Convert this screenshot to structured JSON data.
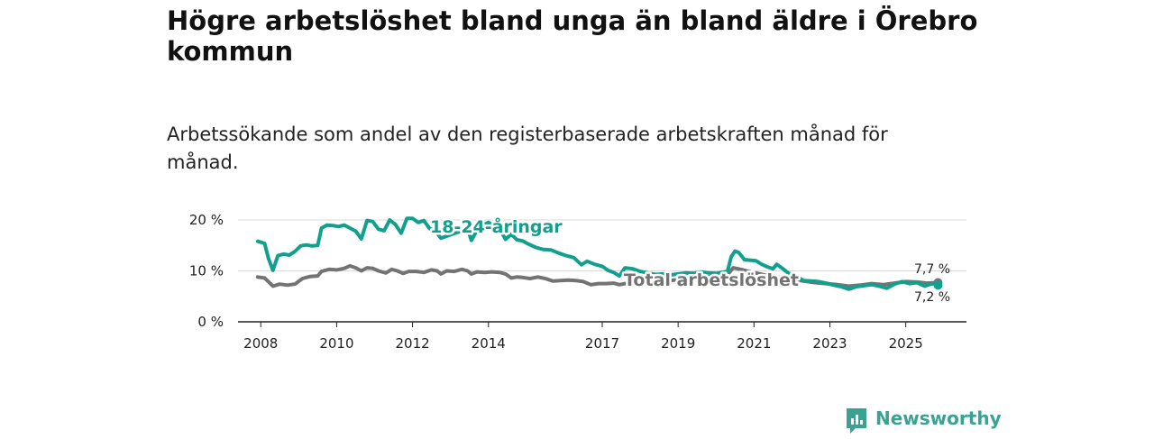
{
  "colors": {
    "youth": "#12a08e",
    "total": "#737373",
    "grid": "#d9d9d9",
    "axis": "#222222",
    "brand": "#3aa293"
  },
  "brand": {
    "name": "Newsworthy",
    "icon": "newsworthy-logo-icon"
  },
  "chart_data": {
    "type": "line",
    "title": "Högre arbetslöshet bland unga än bland äldre i Örebro kommun",
    "subtitle": "Arbetssökande som andel av den registerbaserade arbetskraften månad för månad.",
    "xlabel": "",
    "ylabel": "",
    "x_ticks": [
      2008,
      2010,
      2012,
      2014,
      2017,
      2019,
      2021,
      2023,
      2025
    ],
    "x_tick_labels": [
      "2008",
      "2010",
      "2012",
      "2014",
      "2017",
      "2019",
      "2021",
      "2023",
      "2025"
    ],
    "xlim": [
      2007.4,
      2026.6
    ],
    "ylim": [
      0,
      20
    ],
    "y_ticks": [
      0,
      10,
      20
    ],
    "y_tick_labels": [
      "0 %",
      "10 %",
      "20 %"
    ],
    "grid": true,
    "series": [
      {
        "name": "18-24-åringar",
        "label": "18-24-åringar",
        "color_key": "youth",
        "end_label": "7,2 %",
        "points": [
          [
            2007.92,
            15.8
          ],
          [
            2008.1,
            15.4
          ],
          [
            2008.2,
            12.5
          ],
          [
            2008.32,
            10.1
          ],
          [
            2008.45,
            13.0
          ],
          [
            2008.6,
            13.3
          ],
          [
            2008.75,
            13.1
          ],
          [
            2008.9,
            13.8
          ],
          [
            2009.05,
            14.9
          ],
          [
            2009.2,
            15.1
          ],
          [
            2009.35,
            14.9
          ],
          [
            2009.5,
            15.0
          ],
          [
            2009.6,
            18.4
          ],
          [
            2009.75,
            19.0
          ],
          [
            2009.9,
            18.9
          ],
          [
            2010.05,
            18.7
          ],
          [
            2010.2,
            19.0
          ],
          [
            2010.35,
            18.4
          ],
          [
            2010.5,
            17.8
          ],
          [
            2010.65,
            16.3
          ],
          [
            2010.8,
            19.9
          ],
          [
            2010.95,
            19.7
          ],
          [
            2011.1,
            18.2
          ],
          [
            2011.25,
            17.9
          ],
          [
            2011.4,
            20.0
          ],
          [
            2011.55,
            19.1
          ],
          [
            2011.7,
            17.4
          ],
          [
            2011.85,
            20.3
          ],
          [
            2012.0,
            20.3
          ],
          [
            2012.15,
            19.5
          ],
          [
            2012.3,
            19.9
          ],
          [
            2012.45,
            18.3
          ],
          [
            2012.6,
            17.9
          ],
          [
            2012.75,
            16.4
          ],
          [
            2013.45,
            18.3
          ],
          [
            2013.55,
            16.0
          ],
          [
            2013.7,
            18.0
          ],
          [
            2013.85,
            18.9
          ],
          [
            2014.0,
            19.5
          ],
          [
            2014.15,
            18.9
          ],
          [
            2014.3,
            18.2
          ],
          [
            2014.45,
            16.2
          ],
          [
            2014.6,
            17.2
          ],
          [
            2014.75,
            16.1
          ],
          [
            2014.9,
            15.9
          ],
          [
            2015.05,
            15.3
          ],
          [
            2015.25,
            14.6
          ],
          [
            2015.45,
            14.2
          ],
          [
            2015.65,
            14.1
          ],
          [
            2015.85,
            13.5
          ],
          [
            2016.05,
            13.0
          ],
          [
            2016.25,
            12.6
          ],
          [
            2016.45,
            11.2
          ],
          [
            2016.6,
            11.9
          ],
          [
            2016.8,
            11.3
          ],
          [
            2017.0,
            10.9
          ],
          [
            2017.15,
            10.1
          ],
          [
            2017.3,
            9.7
          ],
          [
            2017.45,
            9.0
          ],
          [
            2017.6,
            10.6
          ],
          [
            2017.8,
            10.4
          ],
          [
            2018.0,
            9.9
          ],
          [
            2018.2,
            9.6
          ],
          [
            2018.4,
            9.3
          ],
          [
            2018.6,
            9.4
          ],
          [
            2018.8,
            9.2
          ],
          [
            2019.0,
            9.4
          ],
          [
            2019.2,
            9.6
          ],
          [
            2019.4,
            9.5
          ],
          [
            2019.6,
            9.8
          ],
          [
            2019.8,
            9.6
          ],
          [
            2020.0,
            9.5
          ],
          [
            2020.15,
            9.7
          ],
          [
            2020.3,
            9.9
          ],
          [
            2020.4,
            12.8
          ],
          [
            2020.5,
            13.9
          ],
          [
            2020.6,
            13.6
          ],
          [
            2020.75,
            12.2
          ],
          [
            2020.9,
            12.1
          ],
          [
            2021.05,
            12.0
          ],
          [
            2021.2,
            11.3
          ],
          [
            2021.35,
            10.8
          ],
          [
            2021.5,
            10.4
          ],
          [
            2021.6,
            11.3
          ],
          [
            2021.75,
            10.5
          ],
          [
            2021.9,
            9.6
          ],
          [
            2022.1,
            9.0
          ],
          [
            2022.3,
            8.1
          ],
          [
            2022.5,
            8.0
          ],
          [
            2022.7,
            7.9
          ],
          [
            2022.9,
            7.6
          ],
          [
            2023.1,
            7.2
          ],
          [
            2023.3,
            6.9
          ],
          [
            2023.5,
            6.4
          ],
          [
            2023.7,
            6.9
          ],
          [
            2023.9,
            7.1
          ],
          [
            2024.1,
            7.3
          ],
          [
            2024.3,
            7.0
          ],
          [
            2024.5,
            6.6
          ],
          [
            2024.7,
            7.4
          ],
          [
            2024.9,
            7.9
          ],
          [
            2025.1,
            7.5
          ],
          [
            2025.3,
            7.7
          ],
          [
            2025.5,
            7.0
          ],
          [
            2025.7,
            7.5
          ],
          [
            2025.85,
            7.2
          ]
        ]
      },
      {
        "name": "Total arbetslöshet",
        "label": "Total arbetslöshet",
        "color_key": "total",
        "end_label": "7,7 %",
        "points": [
          [
            2007.92,
            8.8
          ],
          [
            2008.1,
            8.6
          ],
          [
            2008.2,
            7.9
          ],
          [
            2008.32,
            7.0
          ],
          [
            2008.5,
            7.4
          ],
          [
            2008.7,
            7.2
          ],
          [
            2008.9,
            7.4
          ],
          [
            2009.1,
            8.5
          ],
          [
            2009.3,
            8.9
          ],
          [
            2009.5,
            9.0
          ],
          [
            2009.6,
            9.9
          ],
          [
            2009.8,
            10.3
          ],
          [
            2010.0,
            10.2
          ],
          [
            2010.2,
            10.5
          ],
          [
            2010.35,
            11.0
          ],
          [
            2010.5,
            10.6
          ],
          [
            2010.65,
            10.0
          ],
          [
            2010.8,
            10.6
          ],
          [
            2010.95,
            10.5
          ],
          [
            2011.1,
            10.0
          ],
          [
            2011.3,
            9.6
          ],
          [
            2011.45,
            10.3
          ],
          [
            2011.6,
            10.0
          ],
          [
            2011.75,
            9.5
          ],
          [
            2011.9,
            9.9
          ],
          [
            2012.1,
            9.9
          ],
          [
            2012.3,
            9.7
          ],
          [
            2012.5,
            10.2
          ],
          [
            2012.65,
            10.0
          ],
          [
            2012.75,
            9.4
          ],
          [
            2012.9,
            10.0
          ],
          [
            2013.1,
            9.9
          ],
          [
            2013.3,
            10.3
          ],
          [
            2013.45,
            10.0
          ],
          [
            2013.55,
            9.4
          ],
          [
            2013.7,
            9.8
          ],
          [
            2013.9,
            9.7
          ],
          [
            2014.1,
            9.8
          ],
          [
            2014.3,
            9.7
          ],
          [
            2014.45,
            9.4
          ],
          [
            2014.6,
            8.6
          ],
          [
            2014.75,
            8.8
          ],
          [
            2014.9,
            8.7
          ],
          [
            2015.1,
            8.5
          ],
          [
            2015.3,
            8.8
          ],
          [
            2015.5,
            8.5
          ],
          [
            2015.7,
            8.0
          ],
          [
            2015.9,
            8.1
          ],
          [
            2016.1,
            8.2
          ],
          [
            2016.3,
            8.1
          ],
          [
            2016.5,
            7.9
          ],
          [
            2016.7,
            7.3
          ],
          [
            2016.9,
            7.5
          ],
          [
            2017.1,
            7.5
          ],
          [
            2017.3,
            7.6
          ],
          [
            2017.45,
            7.3
          ],
          [
            2017.6,
            7.5
          ],
          [
            2018.0,
            7.7
          ],
          [
            2018.5,
            7.8
          ],
          [
            2019.0,
            8.3
          ],
          [
            2019.5,
            8.6
          ],
          [
            2020.0,
            9.0
          ],
          [
            2020.3,
            9.2
          ],
          [
            2020.45,
            10.6
          ],
          [
            2020.65,
            10.3
          ],
          [
            2020.85,
            9.9
          ],
          [
            2021.1,
            9.5
          ],
          [
            2021.4,
            9.0
          ],
          [
            2021.7,
            8.7
          ],
          [
            2022.0,
            8.3
          ],
          [
            2022.3,
            8.0
          ],
          [
            2022.6,
            7.7
          ],
          [
            2022.9,
            7.5
          ],
          [
            2023.2,
            7.3
          ],
          [
            2023.5,
            7.0
          ],
          [
            2023.8,
            7.2
          ],
          [
            2024.1,
            7.5
          ],
          [
            2024.4,
            7.3
          ],
          [
            2024.7,
            7.6
          ],
          [
            2025.0,
            7.9
          ],
          [
            2025.3,
            7.8
          ],
          [
            2025.55,
            7.6
          ],
          [
            2025.85,
            7.7
          ]
        ]
      }
    ]
  }
}
